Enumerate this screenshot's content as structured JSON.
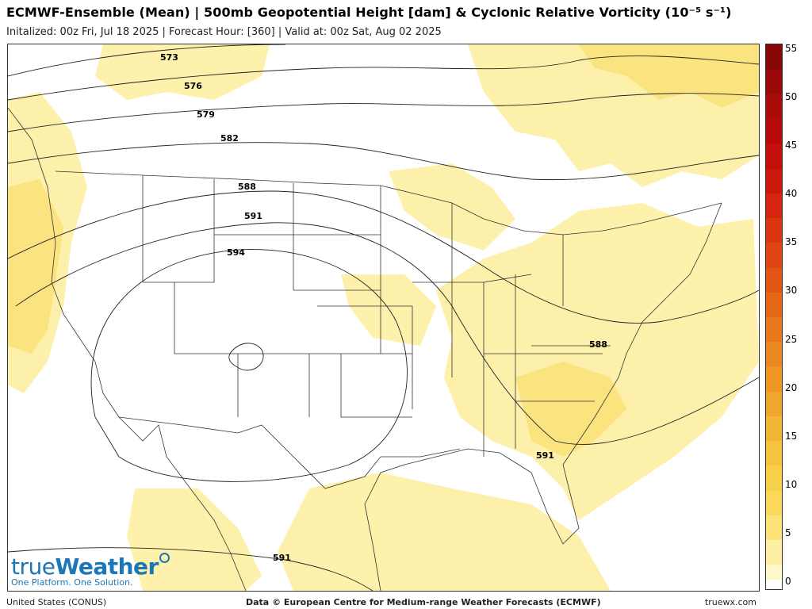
{
  "header": {
    "title": "ECMWF-Ensemble (Mean) | 500mb Geopotential Height [dam] & Cyclonic Relative Vorticity (10⁻⁵ s⁻¹)",
    "subtitle": "Initalized: 00z Fri, Jul 18 2025  |  Forecast Hour: [360]  |  Valid at: 00z Sat, Aug 02 2025"
  },
  "map": {
    "region": "United States (CONUS)",
    "contour_labels": [
      "573",
      "576",
      "579",
      "582",
      "588",
      "591",
      "594",
      "588",
      "591",
      "591"
    ],
    "colors": {
      "light_yellow": "#fdf0a6",
      "yellow": "#fbe27a",
      "gold": "#f7cf49",
      "boundary": "#333333"
    }
  },
  "colorbar": {
    "ticks": [
      "55",
      "50",
      "45",
      "40",
      "35",
      "30",
      "25",
      "20",
      "15",
      "10",
      "5",
      "0"
    ],
    "colors": [
      "#fff8c8",
      "#fdf0a6",
      "#fbe27a",
      "#f9d85a",
      "#f7cf49",
      "#f5c33d",
      "#f3b534",
      "#f1a52c",
      "#ef9626",
      "#ec8620",
      "#e9771c",
      "#e66718",
      "#e25515",
      "#de4512",
      "#da3510",
      "#d4260e",
      "#cd190c",
      "#c30f0b",
      "#b70a0a",
      "#a90a0a",
      "#990909",
      "#870808"
    ]
  },
  "branding": {
    "logo_name_a": "true",
    "logo_name_b": "Weather",
    "tagline": "One Platform. One Solution."
  },
  "footer": {
    "left": "United States (CONUS)",
    "center": "Data © European Centre for Medium-range Weather Forecasts (ECMWF)",
    "right": "truewx.com"
  }
}
